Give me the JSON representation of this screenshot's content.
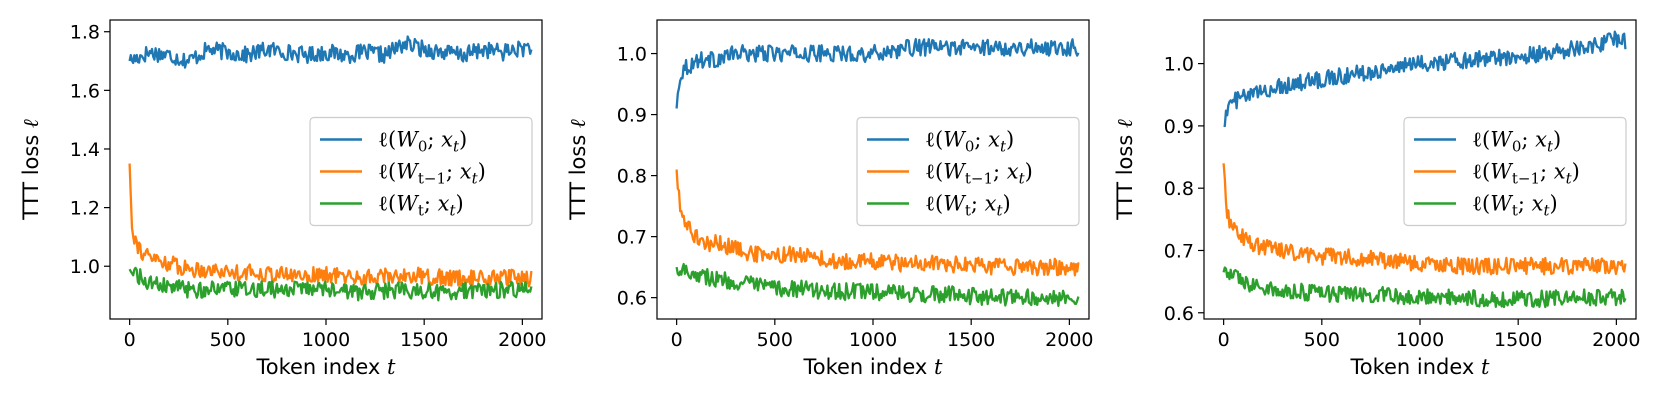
{
  "chart_data": [
    {
      "type": "line",
      "xlabel": "Token index t",
      "ylabel": "TTT loss ℓ",
      "xlim": [
        -100,
        2100
      ],
      "ylim": [
        0.82,
        1.84
      ],
      "xticks": [
        0,
        500,
        1000,
        1500,
        2000
      ],
      "xtick_labels": [
        "0",
        "500",
        "1000",
        "1500",
        "2000"
      ],
      "yticks": [
        1.0,
        1.2,
        1.4,
        1.6,
        1.8
      ],
      "ytick_labels": [
        "1.0",
        "1.2",
        "1.4",
        "1.6",
        "1.8"
      ],
      "legend_position": "center-right",
      "grid": false,
      "series": [
        {
          "name": "ℓ(W0; xt)",
          "color": "#1f77b4",
          "x": [
            0,
            100,
            200,
            300,
            400,
            500,
            600,
            700,
            800,
            900,
            1000,
            1100,
            1200,
            1300,
            1400,
            1500,
            1600,
            1700,
            1800,
            1900,
            2048
          ],
          "y": [
            1.7,
            1.73,
            1.72,
            1.7,
            1.74,
            1.73,
            1.72,
            1.74,
            1.73,
            1.72,
            1.73,
            1.72,
            1.73,
            1.72,
            1.76,
            1.74,
            1.73,
            1.72,
            1.74,
            1.73,
            1.75
          ]
        },
        {
          "name": "ℓ(Wt−1; xt)",
          "color": "#ff7f0e",
          "x": [
            0,
            10,
            25,
            50,
            75,
            100,
            150,
            200,
            300,
            400,
            500,
            600,
            800,
            1000,
            1200,
            1400,
            1600,
            1800,
            2000,
            2048
          ],
          "y": [
            1.35,
            1.16,
            1.1,
            1.06,
            1.04,
            1.03,
            1.02,
            1.01,
            0.99,
            0.99,
            0.98,
            0.98,
            0.97,
            0.97,
            0.96,
            0.97,
            0.96,
            0.96,
            0.96,
            0.96
          ]
        },
        {
          "name": "ℓ(Wt; xt)",
          "color": "#2ca02c",
          "x": [
            0,
            100,
            200,
            300,
            400,
            500,
            600,
            800,
            1000,
            1200,
            1400,
            1600,
            1800,
            2048
          ],
          "y": [
            0.99,
            0.94,
            0.93,
            0.92,
            0.92,
            0.92,
            0.92,
            0.92,
            0.92,
            0.91,
            0.92,
            0.91,
            0.92,
            0.92
          ]
        }
      ]
    },
    {
      "type": "line",
      "xlabel": "Token index t",
      "ylabel": "TTT loss ℓ",
      "xlim": [
        -100,
        2100
      ],
      "ylim": [
        0.565,
        1.055
      ],
      "xticks": [
        0,
        500,
        1000,
        1500,
        2000
      ],
      "xtick_labels": [
        "0",
        "500",
        "1000",
        "1500",
        "2000"
      ],
      "yticks": [
        0.6,
        0.7,
        0.8,
        0.9,
        1.0
      ],
      "ytick_labels": [
        "0.6",
        "0.7",
        "0.8",
        "0.9",
        "1.0"
      ],
      "legend_position": "center-right",
      "grid": false,
      "series": [
        {
          "name": "ℓ(W0; xt)",
          "color": "#1f77b4",
          "x": [
            0,
            10,
            25,
            50,
            75,
            100,
            150,
            200,
            300,
            400,
            500,
            600,
            800,
            1000,
            1200,
            1400,
            1600,
            1800,
            2000,
            2048
          ],
          "y": [
            0.91,
            0.95,
            0.97,
            0.98,
            0.98,
            0.99,
            0.99,
            0.99,
            1.0,
            1.0,
            1.0,
            1.0,
            1.0,
            1.0,
            1.01,
            1.01,
            1.01,
            1.01,
            1.01,
            1.01
          ]
        },
        {
          "name": "ℓ(Wt−1; xt)",
          "color": "#ff7f0e",
          "x": [
            0,
            10,
            25,
            50,
            75,
            100,
            150,
            200,
            300,
            400,
            500,
            600,
            800,
            1000,
            1200,
            1400,
            1600,
            1800,
            2000,
            2048
          ],
          "y": [
            0.81,
            0.77,
            0.74,
            0.72,
            0.71,
            0.7,
            0.69,
            0.69,
            0.68,
            0.67,
            0.67,
            0.67,
            0.66,
            0.66,
            0.655,
            0.655,
            0.65,
            0.65,
            0.65,
            0.65
          ]
        },
        {
          "name": "ℓ(Wt; xt)",
          "color": "#2ca02c",
          "x": [
            0,
            100,
            200,
            300,
            400,
            500,
            600,
            800,
            1000,
            1200,
            1400,
            1600,
            1800,
            2048
          ],
          "y": [
            0.65,
            0.64,
            0.63,
            0.625,
            0.62,
            0.615,
            0.615,
            0.61,
            0.61,
            0.605,
            0.605,
            0.6,
            0.6,
            0.6
          ]
        }
      ]
    },
    {
      "type": "line",
      "xlabel": "Token index t",
      "ylabel": "TTT loss ℓ",
      "xlim": [
        -100,
        2100
      ],
      "ylim": [
        0.59,
        1.07
      ],
      "xticks": [
        0,
        500,
        1000,
        1500,
        2000
      ],
      "xtick_labels": [
        "0",
        "500",
        "1000",
        "1500",
        "2000"
      ],
      "yticks": [
        0.6,
        0.7,
        0.8,
        0.9,
        1.0
      ],
      "ytick_labels": [
        "0.6",
        "0.7",
        "0.8",
        "0.9",
        "1.0"
      ],
      "legend_position": "center-right",
      "grid": false,
      "series": [
        {
          "name": "ℓ(W0; xt)",
          "color": "#1f77b4",
          "x": [
            0,
            25,
            50,
            100,
            200,
            300,
            400,
            500,
            600,
            800,
            1000,
            1200,
            1400,
            1600,
            1800,
            1900,
            2000,
            2048
          ],
          "y": [
            0.9,
            0.93,
            0.94,
            0.945,
            0.955,
            0.965,
            0.97,
            0.975,
            0.98,
            0.99,
            1.0,
            1.005,
            1.01,
            1.015,
            1.025,
            1.03,
            1.04,
            1.035
          ]
        },
        {
          "name": "ℓ(Wt−1; xt)",
          "color": "#ff7f0e",
          "x": [
            0,
            10,
            25,
            50,
            75,
            100,
            150,
            200,
            300,
            400,
            500,
            600,
            800,
            1000,
            1200,
            1400,
            1600,
            1800,
            2000,
            2048
          ],
          "y": [
            0.84,
            0.78,
            0.75,
            0.74,
            0.73,
            0.72,
            0.71,
            0.705,
            0.7,
            0.695,
            0.69,
            0.69,
            0.685,
            0.68,
            0.675,
            0.675,
            0.675,
            0.675,
            0.675,
            0.675
          ]
        },
        {
          "name": "ℓ(Wt; xt)",
          "color": "#2ca02c",
          "x": [
            0,
            100,
            200,
            300,
            400,
            500,
            600,
            800,
            1000,
            1200,
            1400,
            1600,
            1800,
            2048
          ],
          "y": [
            0.665,
            0.65,
            0.64,
            0.635,
            0.633,
            0.63,
            0.63,
            0.628,
            0.625,
            0.625,
            0.622,
            0.622,
            0.625,
            0.625
          ]
        }
      ]
    }
  ]
}
